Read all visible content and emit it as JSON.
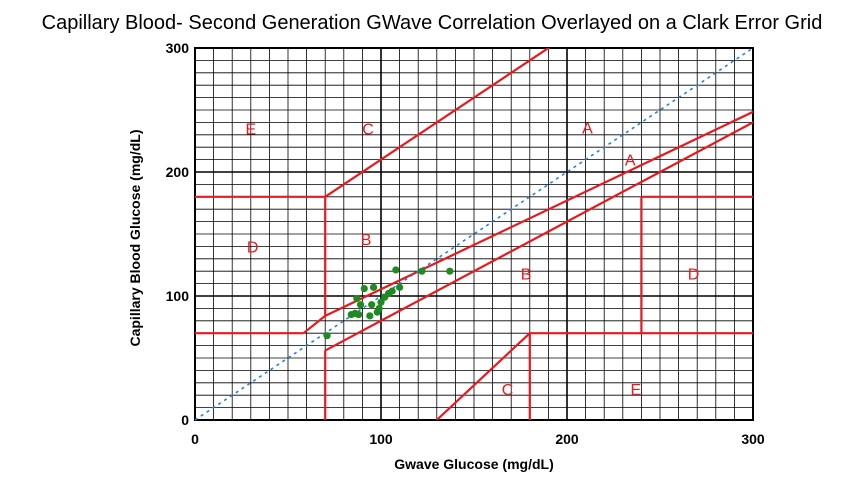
{
  "chart_data": {
    "type": "scatter",
    "title": "Capillary Blood- Second Generation GWave Correlation Overlayed on a Clark Error Grid",
    "xlabel": "Gwave  Glucose (mg/dL)",
    "ylabel": "Capillary Blood Glucose (mg/dL)",
    "xlim": [
      0,
      300
    ],
    "ylim": [
      0,
      300
    ],
    "xticks": [
      "0",
      "100",
      "200",
      "300"
    ],
    "yticks": [
      "0",
      "100",
      "200",
      "300"
    ],
    "grid": true,
    "series": [
      {
        "color": "#1f8a1f",
        "points": [
          [
            71,
            68
          ],
          [
            84,
            85
          ],
          [
            86,
            86
          ],
          [
            87,
            98
          ],
          [
            89,
            93
          ],
          [
            88,
            85
          ],
          [
            91,
            106
          ],
          [
            94,
            84
          ],
          [
            95,
            93
          ],
          [
            96,
            107
          ],
          [
            98,
            87
          ],
          [
            99,
            90
          ],
          [
            100,
            95
          ],
          [
            102,
            99
          ],
          [
            104,
            102
          ],
          [
            106,
            104
          ],
          [
            108,
            121
          ],
          [
            110,
            107
          ],
          [
            122,
            120
          ],
          [
            137,
            120
          ]
        ]
      }
    ],
    "identity_line": {
      "color": "#2a7fd4",
      "from": [
        0,
        0
      ],
      "to": [
        300,
        300
      ]
    },
    "zone_line_color": "#e8191e",
    "zone_labels": [
      {
        "text": "E",
        "x": 30,
        "y": 235
      },
      {
        "text": "C",
        "x": 93,
        "y": 235
      },
      {
        "text": "A",
        "x": 211,
        "y": 236
      },
      {
        "text": "A",
        "x": 234,
        "y": 210
      },
      {
        "text": "D",
        "x": 31,
        "y": 140
      },
      {
        "text": "B",
        "x": 92,
        "y": 146
      },
      {
        "text": "B",
        "x": 178,
        "y": 118
      },
      {
        "text": "D",
        "x": 268,
        "y": 118
      },
      {
        "text": "C",
        "x": 168,
        "y": 25
      },
      {
        "text": "E",
        "x": 237,
        "y": 25
      }
    ]
  }
}
